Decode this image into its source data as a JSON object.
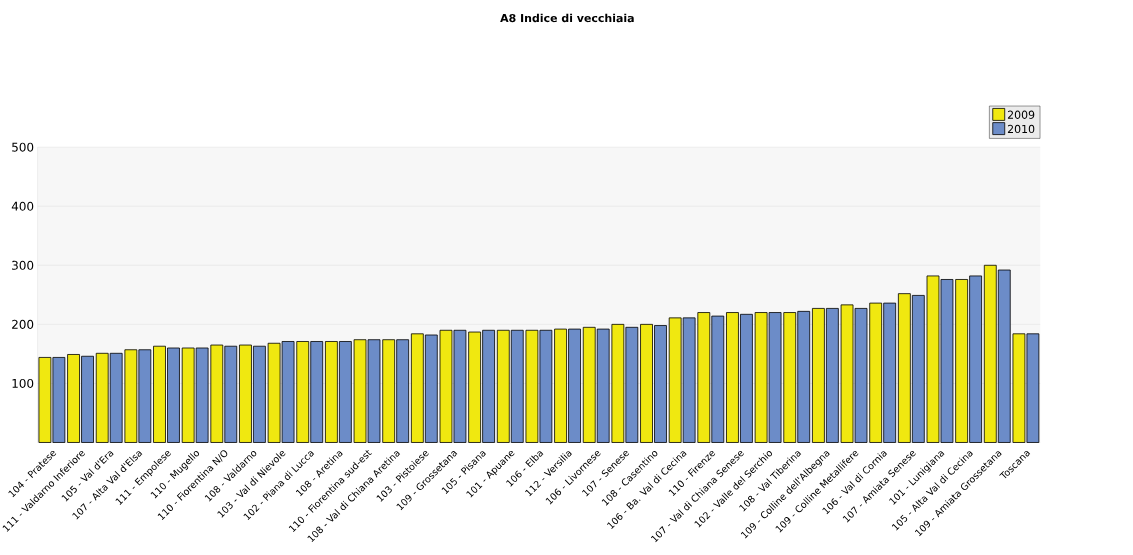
{
  "chart_data": {
    "type": "bar",
    "title": "A8 Indice di vecchiaia",
    "categories": [
      "104 - Pratese",
      "111 - Valdarno Inferiore",
      "105 - Val d'Era",
      "107 - Alta Val d'Elsa",
      "111 - Empolese",
      "110 - Mugello",
      "110 - Fiorentina N/O",
      "108 - Valdarno",
      "103 - Val di Nievole",
      "102 - Piana di Lucca",
      "108 - Aretina",
      "110 - Fiorentina sud-est",
      "108 - Val di Chiana Aretina",
      "103 - Pistoiese",
      "109 -  Grossetana",
      "105 - Pisana",
      "101 -  Apuane",
      "106 - Elba",
      "112 - Versilia",
      "106 - Livornese",
      "107 - Senese",
      "108 - Casentino",
      "106 - Ba. Val di Cecina",
      "110 - Firenze",
      "107 - Val di Chiana Senese",
      "102 - Valle del Serchio",
      "108 - Val Tiberina",
      "109 - Colline dell'Albegna",
      "109 - Colline Metallifere",
      "106 - Val di Cornia",
      "107 - Amiata Senese",
      "101 - Lunigiana",
      "105 - Alta Val di Cecina",
      "109 - Amiata Grossetana",
      "Toscana"
    ],
    "series": [
      {
        "name": "2009",
        "color": "#f0e810",
        "values": [
          144,
          149,
          151,
          157,
          163,
          160,
          165,
          165,
          168,
          171,
          171,
          174,
          174,
          184,
          190,
          187,
          190,
          190,
          192,
          195,
          200,
          200,
          211,
          220,
          220,
          220,
          220,
          227,
          233,
          236,
          252,
          282,
          276,
          300,
          184
        ]
      },
      {
        "name": "2010",
        "color": "#6c8cc8",
        "values": [
          144,
          146,
          151,
          157,
          160,
          160,
          163,
          163,
          171,
          171,
          171,
          174,
          174,
          182,
          190,
          190,
          190,
          190,
          192,
          192,
          195,
          198,
          211,
          214,
          217,
          220,
          222,
          227,
          227,
          236,
          249,
          276,
          282,
          292,
          184
        ]
      }
    ],
    "ylim": [
      0,
      500
    ],
    "yticks": [
      100,
      200,
      300,
      400,
      500
    ],
    "grid": "y",
    "legend": "top right"
  }
}
